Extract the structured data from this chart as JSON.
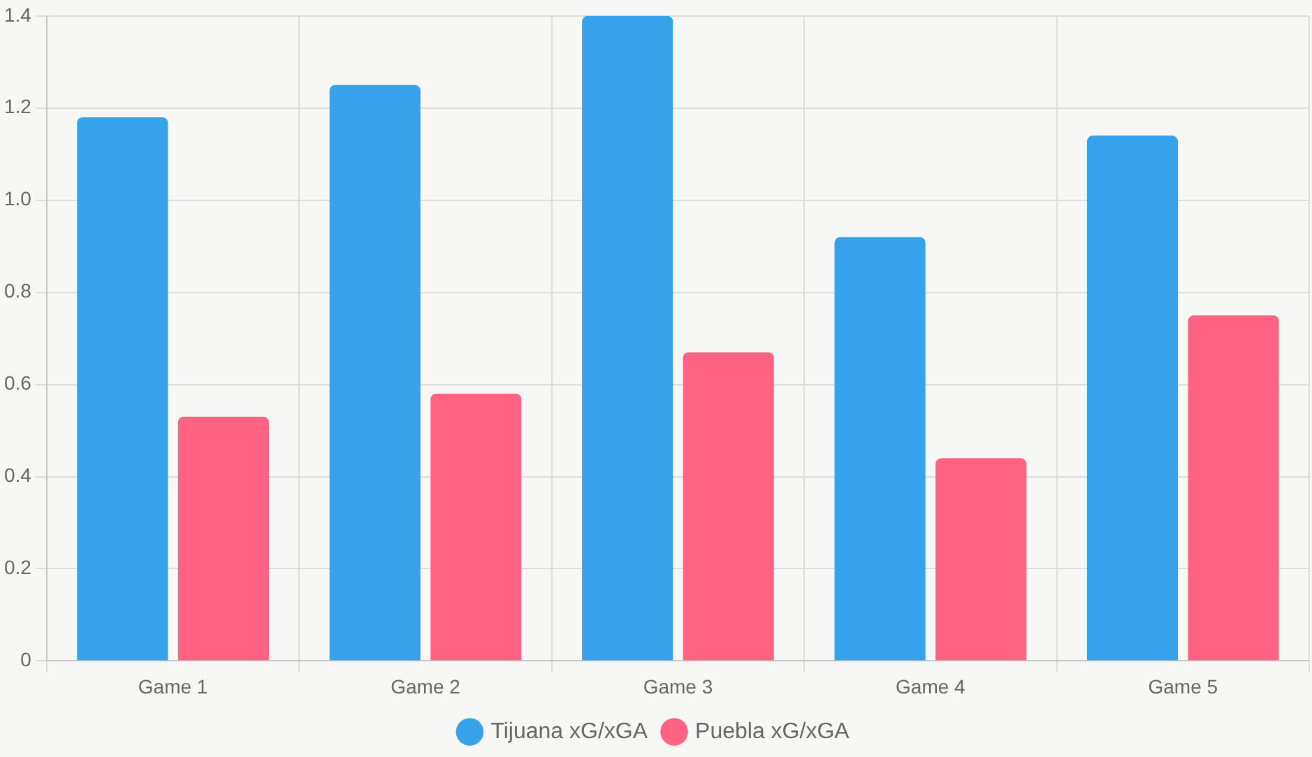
{
  "chart_data": {
    "type": "bar",
    "categories": [
      "Game 1",
      "Game 2",
      "Game 3",
      "Game 4",
      "Game 5"
    ],
    "series": [
      {
        "name": "Tijuana xG/xGA",
        "color": "#36a2eb",
        "values": [
          1.18,
          1.25,
          1.4,
          0.92,
          1.14
        ]
      },
      {
        "name": "Puebla xG/xGA",
        "color": "#ff6384",
        "values": [
          0.53,
          0.58,
          0.67,
          0.44,
          0.75
        ]
      }
    ],
    "ylim": [
      0,
      1.4
    ],
    "yticks": [
      0,
      0.2,
      0.4,
      0.6,
      0.8,
      {
        "value": 1,
        "label": "1.0"
      },
      1.2,
      1.4
    ],
    "grid": true,
    "legend": "bottom"
  }
}
